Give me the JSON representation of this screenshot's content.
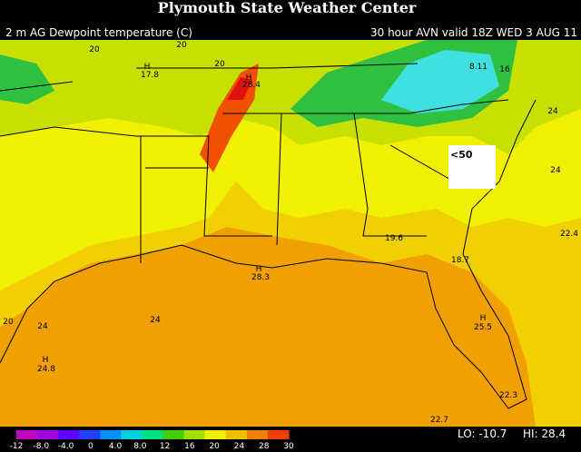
{
  "header": {
    "title": "Plymouth State Weather Center",
    "product": "2 m AG Dewpoint temperature (C)",
    "valid": "30 hour AVN valid 18Z WED 3 AUG 11"
  },
  "map": {
    "labels": [
      "20",
      "20",
      "17.8",
      "20",
      "28.4",
      "8.11",
      "16",
      "24",
      "24",
      "19.6",
      "22.4",
      "18.7",
      "28.3",
      "20",
      "24",
      "24",
      "25.5",
      "24.8",
      "22.3",
      "22.7"
    ],
    "highs": [
      "H",
      "H",
      "H",
      "H",
      "H"
    ],
    "box": "<50"
  },
  "colorbar": {
    "ticks": [
      "-12",
      "-8.0",
      "-4.0",
      "0",
      "4.0",
      "8.0",
      "12",
      "16",
      "20",
      "24",
      "28",
      "30"
    ]
  },
  "stats": {
    "lo": "LO: -10.7",
    "hi": "HI: 28.4"
  }
}
